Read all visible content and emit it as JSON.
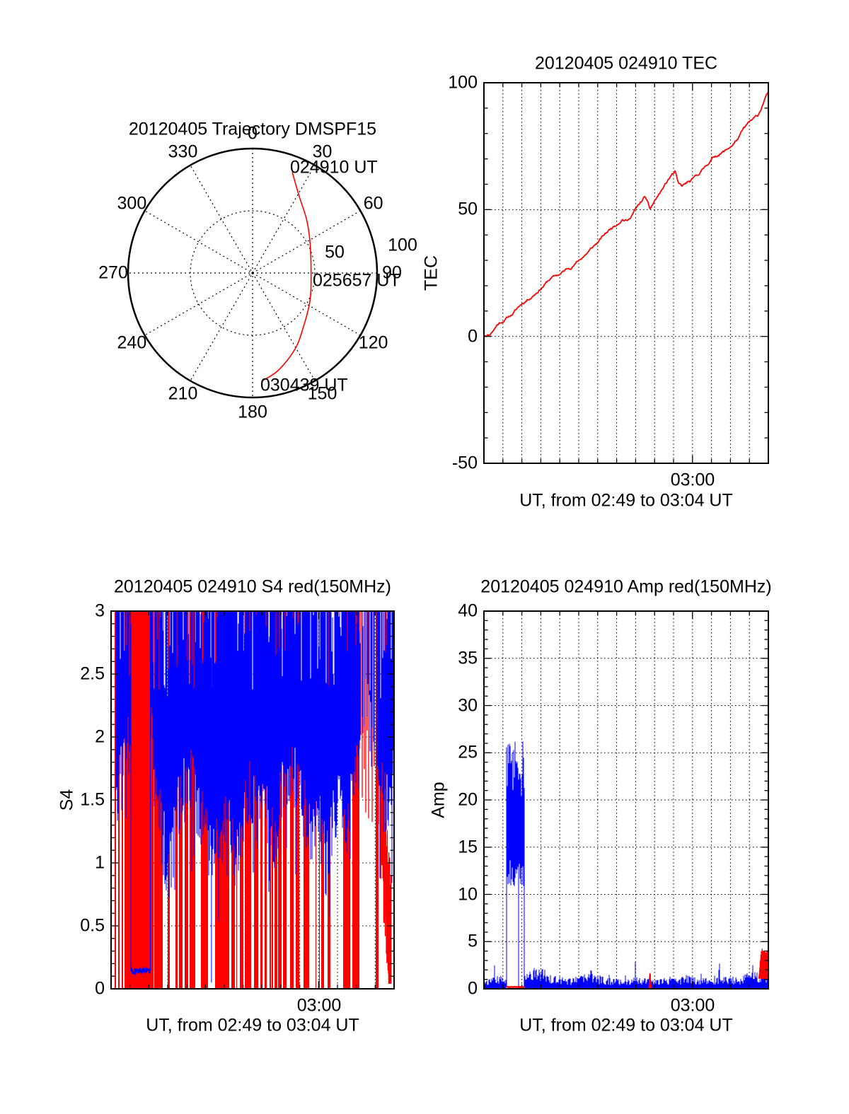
{
  "figure": {
    "background": "#ffffff",
    "colors": {
      "red": "#ff0000",
      "blue": "#0000ff",
      "axis": "#000000"
    }
  },
  "chart_data": [
    {
      "id": "trajectory",
      "type": "polar-trajectory",
      "title": "20120405 Trajectory DMSPF15",
      "angle_labels": [
        "0",
        "30",
        "60",
        "90",
        "120",
        "150",
        "180",
        "210",
        "240",
        "270",
        "300",
        "330"
      ],
      "angle_ticks_deg": [
        0,
        30,
        60,
        90,
        120,
        150,
        180,
        210,
        240,
        270,
        300,
        330
      ],
      "radial_ticks": [
        {
          "label": "50",
          "x": 473,
          "y": 357
        },
        {
          "label": "100",
          "x": 569,
          "y": 347
        }
      ],
      "trajectory_color": "#ff0000",
      "trajectory_points_az_r": [
        [
          21.5,
          87
        ],
        [
          31.4,
          72
        ],
        [
          45.4,
          61
        ],
        [
          62.6,
          52
        ],
        [
          91.4,
          47
        ],
        [
          115.1,
          51
        ],
        [
          135.8,
          59
        ],
        [
          150.9,
          70
        ],
        [
          165.4,
          81
        ],
        [
          175.1,
          87
        ]
      ],
      "annotations": [
        {
          "text": "024910 UT",
          "x": 410,
          "y": 237
        },
        {
          "text": "025657 UT",
          "x": 442,
          "y": 397
        },
        {
          "text": "030439 UT",
          "x": 368,
          "y": 545
        }
      ]
    },
    {
      "id": "tec",
      "type": "line",
      "title": "20120405 024910 TEC",
      "ylabel": "TEC",
      "xlabel": "UT, from 02:49 to 03:04 UT",
      "xtick_label": "03:00",
      "x_start": "02:49",
      "x_end": "03:04",
      "x_span_minutes": 15,
      "xtick_minute": 11,
      "ylim": [
        -50,
        100
      ],
      "yticks": [
        {
          "v": -50,
          "label": "-50"
        },
        {
          "v": 0,
          "label": "0"
        },
        {
          "v": 50,
          "label": "50"
        },
        {
          "v": 100,
          "label": "100"
        }
      ],
      "y_minor_step": 10,
      "ygrid": [
        0,
        50
      ],
      "line_color": "#ff0000",
      "points_min_val": [
        [
          0,
          0.5
        ],
        [
          0.3,
          1
        ],
        [
          0.7,
          5
        ],
        [
          1,
          6.5
        ],
        [
          1.5,
          9
        ],
        [
          2,
          13
        ],
        [
          2.5,
          16
        ],
        [
          3,
          19.5
        ],
        [
          3.5,
          23
        ],
        [
          4,
          24.5
        ],
        [
          4.5,
          27
        ],
        [
          5,
          30
        ],
        [
          5.5,
          33.5
        ],
        [
          6,
          37
        ],
        [
          6.5,
          41
        ],
        [
          7,
          44.5
        ],
        [
          7.3,
          47
        ],
        [
          7.6,
          46
        ],
        [
          7.9,
          49.5
        ],
        [
          8.2,
          52
        ],
        [
          8.5,
          55
        ],
        [
          8.65,
          52
        ],
        [
          8.75,
          49.5
        ],
        [
          9,
          53
        ],
        [
          9.3,
          56.5
        ],
        [
          9.6,
          60
        ],
        [
          9.9,
          63.5
        ],
        [
          10.1,
          64.5
        ],
        [
          10.25,
          59.5
        ],
        [
          10.45,
          58.5
        ],
        [
          10.7,
          60
        ],
        [
          10.9,
          60.5
        ],
        [
          11.2,
          62.5
        ],
        [
          11.5,
          65
        ],
        [
          11.8,
          68
        ],
        [
          12.1,
          70.5
        ],
        [
          12.4,
          72
        ],
        [
          12.8,
          73.5
        ],
        [
          13.1,
          75.5
        ],
        [
          13.4,
          78
        ],
        [
          13.7,
          81.5
        ],
        [
          14,
          84
        ],
        [
          14.2,
          85
        ],
        [
          14.45,
          86.5
        ],
        [
          14.65,
          90
        ],
        [
          14.8,
          93.5
        ],
        [
          15,
          96
        ]
      ]
    },
    {
      "id": "s4",
      "type": "scintillation-bars",
      "title": "20120405 024910 S4 red(150MHz)",
      "ylabel": "S4",
      "xlabel": "UT, from 02:49 to 03:04 UT",
      "xtick_label": "03:00",
      "x_start": "02:49",
      "x_end": "03:04",
      "x_span_minutes": 15,
      "xtick_minute": 11,
      "ylim": [
        0,
        3
      ],
      "yticks": [
        {
          "v": 0,
          "label": "0"
        },
        {
          "v": 0.5,
          "label": "0.5"
        },
        {
          "v": 1,
          "label": "1"
        },
        {
          "v": 1.5,
          "label": "1.5"
        },
        {
          "v": 2,
          "label": "2"
        },
        {
          "v": 2.5,
          "label": "2.5"
        },
        {
          "v": 3,
          "label": "3"
        }
      ],
      "y_minor_step": 0.1,
      "ygrid": [
        0.5,
        1,
        1.5,
        2,
        2.5
      ],
      "red_full_density": [
        [
          0,
          0.012,
          0.12
        ],
        [
          0.012,
          0.155,
          0.82
        ],
        [
          0.155,
          0.29,
          0.75
        ],
        [
          0.29,
          0.34,
          0.5
        ],
        [
          0.34,
          0.63,
          0.8
        ],
        [
          0.63,
          0.76,
          0.68
        ],
        [
          0.76,
          0.84,
          0.52
        ],
        [
          0.84,
          0.88,
          0.42
        ],
        [
          0.88,
          0.908,
          0.1
        ],
        [
          0.908,
          0.915,
          0.55
        ],
        [
          0.915,
          0.95,
          0.05
        ],
        [
          0.95,
          1,
          0
        ]
      ],
      "red_upper_strokes": {
        "from": 0.86,
        "to": 0.985,
        "density": 0.45,
        "lo_min": 1.3,
        "lo_max": 2.2
      },
      "red_tail": {
        "from_min": 14.28,
        "to_min": 14.85,
        "start_val": 1.45,
        "end_val": 0.1
      },
      "blue_lower_keys": [
        [
          0,
          1.6
        ],
        [
          0.3,
          1.5
        ],
        [
          0.75,
          1.9
        ],
        [
          1.05,
          2.0
        ],
        [
          2.08,
          2.2
        ],
        [
          2.3,
          1.6
        ],
        [
          2.7,
          1.25
        ],
        [
          3.0,
          0.95
        ],
        [
          3.3,
          1.15
        ],
        [
          3.6,
          1.5
        ],
        [
          4.2,
          1.7
        ],
        [
          4.6,
          1.45
        ],
        [
          5.0,
          1.2
        ],
        [
          5.45,
          1.0
        ],
        [
          5.8,
          1.25
        ],
        [
          6.2,
          1.45
        ],
        [
          6.6,
          1.05
        ],
        [
          6.9,
          1.25
        ],
        [
          7.3,
          1.6
        ],
        [
          7.8,
          1.35
        ],
        [
          8.2,
          1.5
        ],
        [
          8.7,
          1.2
        ],
        [
          9.0,
          1.5
        ],
        [
          9.6,
          1.75
        ],
        [
          10.2,
          1.45
        ],
        [
          10.7,
          1.25
        ],
        [
          11.0,
          1.45
        ],
        [
          11.4,
          0.97
        ],
        [
          11.7,
          1.3
        ],
        [
          12.1,
          1.6
        ],
        [
          12.45,
          1.27
        ],
        [
          12.8,
          1.55
        ],
        [
          13.2,
          2.0
        ],
        [
          13.5,
          2.25
        ],
        [
          13.8,
          2.0
        ],
        [
          14.1,
          1.7
        ],
        [
          14.4,
          1.5
        ],
        [
          14.7,
          1.45
        ],
        [
          15,
          1.7
        ]
      ],
      "blue_gap_region": [
        0.88,
        0.945,
        0.45
      ],
      "blue_start_min": 0.25,
      "blue_flat": {
        "from_min": 1.05,
        "to_min": 2.08,
        "value": 0.145
      },
      "blue_full_spikes_min": [
        5.32
      ]
    },
    {
      "id": "amp",
      "type": "scintillation-bars",
      "title": "20120405 024910 Amp red(150MHz)",
      "ylabel": "Amp",
      "xlabel": "UT, from 02:49 to 03:04 UT",
      "xtick_label": "03:00",
      "x_start": "02:49",
      "x_end": "03:04",
      "x_span_minutes": 15,
      "xtick_minute": 11,
      "ylim": [
        0,
        40
      ],
      "yticks": [
        {
          "v": 0,
          "label": "0"
        },
        {
          "v": 5,
          "label": "5"
        },
        {
          "v": 10,
          "label": "10"
        },
        {
          "v": 15,
          "label": "15"
        },
        {
          "v": 20,
          "label": "20"
        },
        {
          "v": 25,
          "label": "25"
        },
        {
          "v": 30,
          "label": "30"
        },
        {
          "v": 35,
          "label": "35"
        },
        {
          "v": 40,
          "label": "40"
        }
      ],
      "y_minor_step": 1,
      "ygrid": [
        5,
        10,
        15,
        20,
        25,
        30,
        35
      ],
      "burst": {
        "from_min": 1.17,
        "to_min": 2.15,
        "lo": 10.8,
        "hi_start": 25.8,
        "hi_end": 22.5,
        "peak": 26.2
      },
      "red_under_burst": {
        "from_min": 1.17,
        "to_min": 2.15,
        "value": 0.18
      },
      "baseline_keys": [
        [
          0,
          0.75
        ],
        [
          0.5,
          0.85
        ],
        [
          0.9,
          1.0
        ],
        [
          1.1,
          0.9
        ],
        [
          2.2,
          1.1
        ],
        [
          2.5,
          1.7
        ],
        [
          2.8,
          2.1
        ],
        [
          3.0,
          1.8
        ],
        [
          3.3,
          1.3
        ],
        [
          3.7,
          1.0
        ],
        [
          4.2,
          0.85
        ],
        [
          4.8,
          0.9
        ],
        [
          5.3,
          1.15
        ],
        [
          5.7,
          1.5
        ],
        [
          6.0,
          1.1
        ],
        [
          6.5,
          0.85
        ],
        [
          7.2,
          0.8
        ],
        [
          7.8,
          0.9
        ],
        [
          8.4,
          0.85
        ],
        [
          9.0,
          0.9
        ],
        [
          9.6,
          0.8
        ],
        [
          10.2,
          0.85
        ],
        [
          10.7,
          1.1
        ],
        [
          11.2,
          0.9
        ],
        [
          11.8,
          0.85
        ],
        [
          12.3,
          0.9
        ],
        [
          12.9,
          1.0
        ],
        [
          13.4,
          0.9
        ],
        [
          13.9,
          1.2
        ],
        [
          14.1,
          1.6
        ],
        [
          14.4,
          1.3
        ],
        [
          14.7,
          1.25
        ],
        [
          15,
          1.4
        ]
      ],
      "red_events": [
        {
          "from_min": 8.7,
          "to_min": 8.82,
          "lo": 0.1,
          "max": 1.7
        },
        {
          "from_min": 14.5,
          "to_min": 14.97,
          "lo": 1.15,
          "max": 4.1
        }
      ]
    }
  ]
}
